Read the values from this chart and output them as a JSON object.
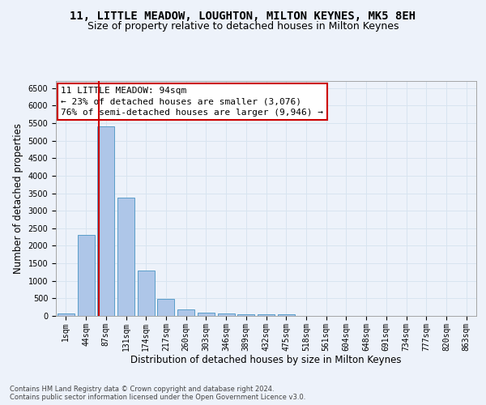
{
  "title": "11, LITTLE MEADOW, LOUGHTON, MILTON KEYNES, MK5 8EH",
  "subtitle": "Size of property relative to detached houses in Milton Keynes",
  "xlabel": "Distribution of detached houses by size in Milton Keynes",
  "ylabel": "Number of detached properties",
  "footer_line1": "Contains HM Land Registry data © Crown copyright and database right 2024.",
  "footer_line2": "Contains public sector information licensed under the Open Government Licence v3.0.",
  "bin_labels": [
    "1sqm",
    "44sqm",
    "87sqm",
    "131sqm",
    "174sqm",
    "217sqm",
    "260sqm",
    "303sqm",
    "346sqm",
    "389sqm",
    "432sqm",
    "475sqm",
    "518sqm",
    "561sqm",
    "604sqm",
    "648sqm",
    "691sqm",
    "734sqm",
    "777sqm",
    "820sqm",
    "863sqm"
  ],
  "bar_values": [
    70,
    2300,
    5400,
    3380,
    1300,
    480,
    185,
    95,
    65,
    50,
    45,
    40,
    5,
    3,
    2,
    2,
    1,
    1,
    1,
    1,
    0
  ],
  "bar_color": "#aec6e8",
  "bar_edge_color": "#5a9ec9",
  "ylim": [
    0,
    6700
  ],
  "yticks": [
    0,
    500,
    1000,
    1500,
    2000,
    2500,
    3000,
    3500,
    4000,
    4500,
    5000,
    5500,
    6000,
    6500
  ],
  "red_line_x": 1.66,
  "annotation_title": "11 LITTLE MEADOW: 94sqm",
  "annotation_line1": "← 23% of detached houses are smaller (3,076)",
  "annotation_line2": "76% of semi-detached houses are larger (9,946) →",
  "annotation_box_facecolor": "#ffffff",
  "annotation_box_edgecolor": "#cc0000",
  "grid_color": "#d8e4f0",
  "background_color": "#edf2fa",
  "title_fontsize": 10,
  "subtitle_fontsize": 9,
  "axis_label_fontsize": 8.5,
  "tick_fontsize": 7,
  "annotation_fontsize": 8,
  "footer_fontsize": 6
}
